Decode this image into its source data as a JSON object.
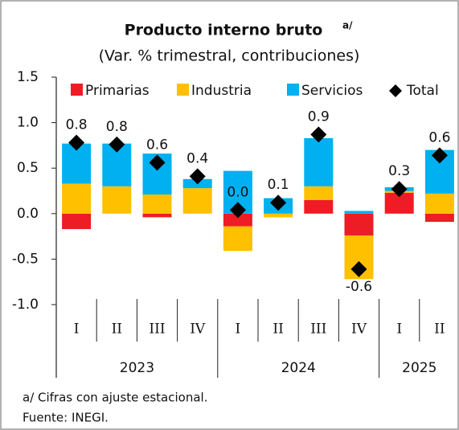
{
  "chart_data": {
    "type": "stacked_bar",
    "title": "Producto interno bruto",
    "title_note": "a/",
    "subtitle": "(Var. % trimestral, contribuciones)",
    "groups": [
      {
        "label": "2023",
        "categories": [
          "I",
          "II",
          "III",
          "IV"
        ]
      },
      {
        "label": "2024",
        "categories": [
          "I",
          "II",
          "III",
          "IV"
        ]
      },
      {
        "label": "2025",
        "categories": [
          "I",
          "II"
        ]
      }
    ],
    "series": [
      {
        "name": "Primarias",
        "color": "#ee1c25",
        "values": [
          -0.17,
          0,
          -0.04,
          0,
          -0.14,
          0,
          0.15,
          -0.24,
          0.23,
          -0.09
        ]
      },
      {
        "name": "Industria",
        "color": "#ffc000",
        "values": [
          0.33,
          0.3,
          0.21,
          0.28,
          -0.27,
          -0.04,
          0.15,
          -0.48,
          0.02,
          0.22
        ]
      },
      {
        "name": "Servicios",
        "color": "#00b0f0",
        "values": [
          0.44,
          0.47,
          0.45,
          0.1,
          0.47,
          0.17,
          0.53,
          0.03,
          0.04,
          0.48
        ]
      }
    ],
    "total": {
      "name": "Total",
      "color": "#000000",
      "values": [
        0.78,
        0.76,
        0.56,
        0.41,
        0.04,
        0.12,
        0.87,
        -0.61,
        0.27,
        0.64
      ],
      "value_labels": [
        "0.8",
        "0.8",
        "0.6",
        "0.4",
        "0.0",
        "0.1",
        "0.9",
        "-0.6",
        "0.3",
        "0.6"
      ]
    },
    "ylim": [
      -1,
      1.5
    ],
    "yticks": [
      {
        "value": -1,
        "label": "-1.0"
      },
      -0.5,
      {
        "value": 0,
        "label": "0.0"
      },
      0.5,
      {
        "value": 1,
        "label": "1.0"
      },
      1.5
    ],
    "notes": [
      "a/ Cifras con ajuste estacional.",
      "Fuente: INEGI."
    ]
  }
}
